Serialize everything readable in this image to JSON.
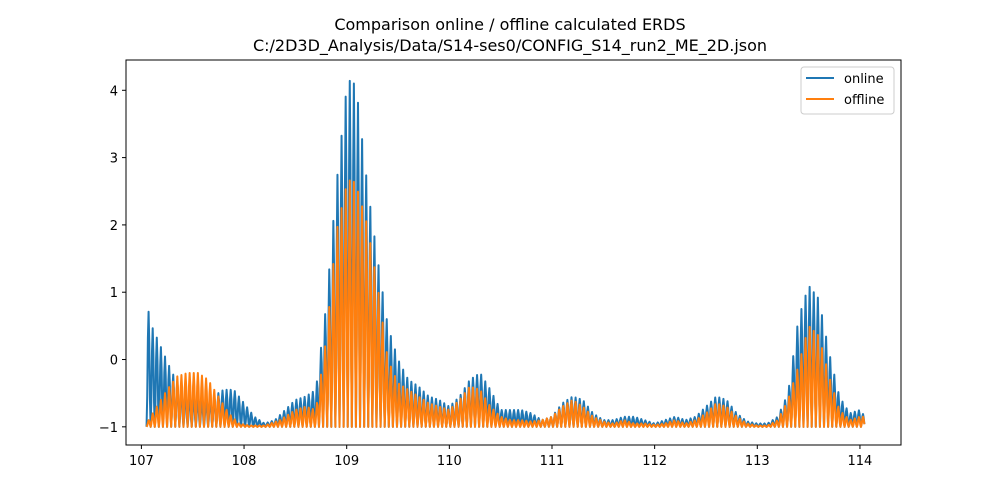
{
  "chart_data": {
    "type": "line",
    "title": "Comparison online / offline calculated ERDS",
    "subtitle": "C:/2D3D_Analysis/Data/S14-ses0/CONFIG_S14_run2_ME_2D.json",
    "xlim": [
      106.85,
      114.4
    ],
    "ylim": [
      -1.27,
      4.45
    ],
    "xticks": [
      107,
      108,
      109,
      110,
      111,
      112,
      113,
      114
    ],
    "yticks": [
      -1,
      0,
      1,
      2,
      3,
      4
    ],
    "tick_labels_x": [
      "107",
      "108",
      "109",
      "110",
      "111",
      "112",
      "113",
      "114"
    ],
    "tick_labels_y": [
      "−1",
      "0",
      "1",
      "2",
      "3",
      "4"
    ],
    "grid": false,
    "legend_position": "top-right",
    "x_range": [
      107.05,
      114.05
    ],
    "oscillation_period": 0.04,
    "series": [
      {
        "name": "online",
        "color": "#1f77b4",
        "envelope": [
          [
            107.05,
            0.85
          ],
          [
            107.1,
            0.5
          ],
          [
            107.2,
            0.15
          ],
          [
            107.3,
            -0.2
          ],
          [
            107.4,
            -0.45
          ],
          [
            107.5,
            -0.55
          ],
          [
            107.6,
            -0.6
          ],
          [
            107.7,
            -0.55
          ],
          [
            107.8,
            -0.45
          ],
          [
            107.9,
            -0.45
          ],
          [
            108.0,
            -0.65
          ],
          [
            108.1,
            -0.85
          ],
          [
            108.2,
            -0.95
          ],
          [
            108.3,
            -0.9
          ],
          [
            108.4,
            -0.75
          ],
          [
            108.5,
            -0.6
          ],
          [
            108.6,
            -0.55
          ],
          [
            108.7,
            -0.45
          ],
          [
            108.8,
            0.8
          ],
          [
            108.9,
            2.6
          ],
          [
            109.0,
            4.05
          ],
          [
            109.05,
            4.2
          ],
          [
            109.1,
            3.95
          ],
          [
            109.2,
            2.6
          ],
          [
            109.3,
            1.5
          ],
          [
            109.4,
            0.5
          ],
          [
            109.5,
            0.0
          ],
          [
            109.6,
            -0.3
          ],
          [
            109.7,
            -0.4
          ],
          [
            109.8,
            -0.55
          ],
          [
            109.9,
            -0.6
          ],
          [
            110.0,
            -0.7
          ],
          [
            110.1,
            -0.55
          ],
          [
            110.2,
            -0.3
          ],
          [
            110.3,
            -0.2
          ],
          [
            110.4,
            -0.45
          ],
          [
            110.5,
            -0.75
          ],
          [
            110.6,
            -0.75
          ],
          [
            110.7,
            -0.75
          ],
          [
            110.8,
            -0.8
          ],
          [
            110.9,
            -0.9
          ],
          [
            111.0,
            -0.85
          ],
          [
            111.1,
            -0.65
          ],
          [
            111.2,
            -0.55
          ],
          [
            111.3,
            -0.6
          ],
          [
            111.4,
            -0.8
          ],
          [
            111.5,
            -0.9
          ],
          [
            111.6,
            -0.9
          ],
          [
            111.7,
            -0.85
          ],
          [
            111.8,
            -0.85
          ],
          [
            111.9,
            -0.9
          ],
          [
            112.0,
            -0.95
          ],
          [
            112.1,
            -0.9
          ],
          [
            112.2,
            -0.85
          ],
          [
            112.3,
            -0.9
          ],
          [
            112.4,
            -0.85
          ],
          [
            112.5,
            -0.7
          ],
          [
            112.6,
            -0.55
          ],
          [
            112.7,
            -0.6
          ],
          [
            112.8,
            -0.8
          ],
          [
            112.9,
            -0.92
          ],
          [
            113.0,
            -0.95
          ],
          [
            113.1,
            -0.95
          ],
          [
            113.2,
            -0.85
          ],
          [
            113.3,
            -0.5
          ],
          [
            113.4,
            0.6
          ],
          [
            113.5,
            1.1
          ],
          [
            113.6,
            0.9
          ],
          [
            113.7,
            0.1
          ],
          [
            113.8,
            -0.55
          ],
          [
            113.9,
            -0.8
          ],
          [
            114.0,
            -0.75
          ],
          [
            114.05,
            -0.85
          ]
        ]
      },
      {
        "name": "offline",
        "color": "#ff7f0e",
        "envelope": [
          [
            107.05,
            -0.95
          ],
          [
            107.15,
            -0.7
          ],
          [
            107.25,
            -0.45
          ],
          [
            107.35,
            -0.25
          ],
          [
            107.45,
            -0.2
          ],
          [
            107.55,
            -0.2
          ],
          [
            107.65,
            -0.3
          ],
          [
            107.75,
            -0.55
          ],
          [
            107.85,
            -0.8
          ],
          [
            107.95,
            -0.95
          ],
          [
            108.05,
            -0.98
          ],
          [
            108.2,
            -0.98
          ],
          [
            108.35,
            -0.9
          ],
          [
            108.5,
            -0.75
          ],
          [
            108.6,
            -0.7
          ],
          [
            108.7,
            -0.75
          ],
          [
            108.8,
            0.3
          ],
          [
            108.9,
            1.9
          ],
          [
            109.0,
            2.6
          ],
          [
            109.05,
            2.7
          ],
          [
            109.1,
            2.55
          ],
          [
            109.2,
            2.0
          ],
          [
            109.3,
            1.1
          ],
          [
            109.4,
            0.0
          ],
          [
            109.5,
            -0.35
          ],
          [
            109.6,
            -0.45
          ],
          [
            109.7,
            -0.55
          ],
          [
            109.8,
            -0.65
          ],
          [
            109.9,
            -0.7
          ],
          [
            110.0,
            -0.75
          ],
          [
            110.1,
            -0.6
          ],
          [
            110.2,
            -0.4
          ],
          [
            110.3,
            -0.45
          ],
          [
            110.4,
            -0.7
          ],
          [
            110.5,
            -0.85
          ],
          [
            110.6,
            -0.9
          ],
          [
            110.7,
            -0.9
          ],
          [
            110.8,
            -0.92
          ],
          [
            110.9,
            -0.9
          ],
          [
            111.0,
            -0.85
          ],
          [
            111.1,
            -0.7
          ],
          [
            111.2,
            -0.6
          ],
          [
            111.3,
            -0.7
          ],
          [
            111.4,
            -0.85
          ],
          [
            111.5,
            -0.92
          ],
          [
            111.6,
            -0.95
          ],
          [
            111.7,
            -0.9
          ],
          [
            111.8,
            -0.95
          ],
          [
            111.9,
            -0.95
          ],
          [
            112.0,
            -0.97
          ],
          [
            112.1,
            -0.95
          ],
          [
            112.2,
            -0.9
          ],
          [
            112.3,
            -0.95
          ],
          [
            112.4,
            -0.9
          ],
          [
            112.5,
            -0.8
          ],
          [
            112.6,
            -0.65
          ],
          [
            112.7,
            -0.7
          ],
          [
            112.8,
            -0.85
          ],
          [
            112.9,
            -0.95
          ],
          [
            113.0,
            -0.98
          ],
          [
            113.1,
            -0.98
          ],
          [
            113.2,
            -0.9
          ],
          [
            113.3,
            -0.6
          ],
          [
            113.4,
            -0.1
          ],
          [
            113.5,
            0.5
          ],
          [
            113.6,
            0.35
          ],
          [
            113.7,
            -0.25
          ],
          [
            113.8,
            -0.75
          ],
          [
            113.9,
            -0.9
          ],
          [
            114.0,
            -0.85
          ],
          [
            114.05,
            -0.85
          ]
        ]
      }
    ]
  }
}
